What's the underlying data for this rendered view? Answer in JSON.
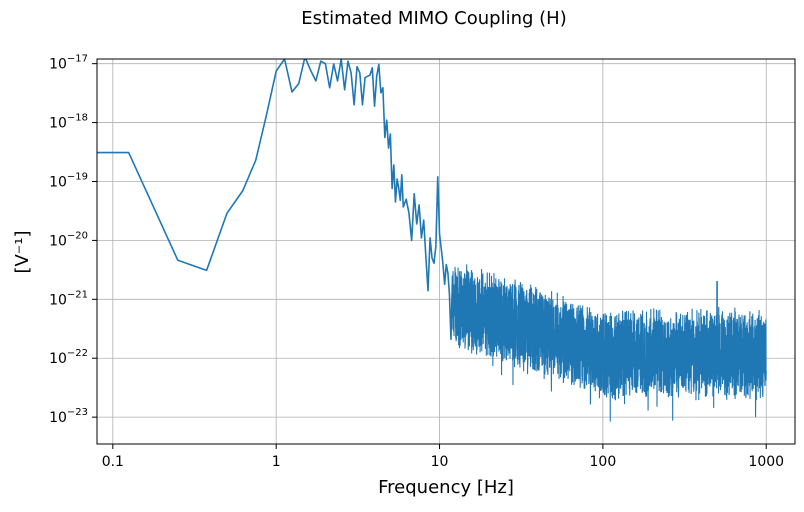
{
  "chart_data": {
    "type": "line",
    "title": "Estimated MIMO Coupling (H)",
    "xlabel": "Frequency [Hz]",
    "ylabel": "[V⁻¹]",
    "x_scale": "log",
    "y_scale": "log",
    "xlim": [
      0.08,
      1500
    ],
    "ylim": [
      3.5e-24,
      1.2e-17
    ],
    "grid": true,
    "line_color": "#1f77b4",
    "xticks": [
      {
        "value": 0.1,
        "label": "0.1"
      },
      {
        "value": 1,
        "label": "1"
      },
      {
        "value": 10,
        "label": "10"
      },
      {
        "value": 100,
        "label": "100"
      },
      {
        "value": 1000,
        "label": "1000"
      }
    ],
    "yticks": [
      {
        "value": 1e-23,
        "base": "10",
        "exp": "−23"
      },
      {
        "value": 1e-22,
        "base": "10",
        "exp": "−22"
      },
      {
        "value": 1e-21,
        "base": "10",
        "exp": "−21"
      },
      {
        "value": 1e-20,
        "base": "10",
        "exp": "−20"
      },
      {
        "value": 1e-19,
        "base": "10",
        "exp": "−19"
      },
      {
        "value": 1e-18,
        "base": "10",
        "exp": "−18"
      },
      {
        "value": 1e-17,
        "base": "10",
        "exp": "−17"
      }
    ],
    "series": [
      {
        "x": [
          0.08,
          0.125,
          0.25,
          0.375,
          0.5,
          0.625,
          0.75,
          0.875,
          1.0,
          1.125,
          1.25,
          1.375,
          1.5,
          1.625,
          1.75,
          1.875,
          2.0,
          2.125,
          2.25,
          2.375,
          2.5,
          2.625,
          2.75,
          2.875,
          3.0,
          3.125,
          3.25,
          3.375,
          3.5,
          3.625,
          3.75,
          3.875,
          4.0,
          4.125,
          4.25,
          4.375,
          4.5,
          4.625,
          4.75,
          4.875,
          5.0,
          5.125,
          5.25,
          5.375,
          5.5,
          5.625,
          5.75,
          5.875,
          6.0,
          6.25,
          6.5,
          6.75,
          7.0,
          7.25,
          7.5,
          7.75,
          8.0,
          8.25,
          8.5,
          8.75,
          9.0,
          9.25,
          9.5,
          9.75,
          10.0,
          10.25,
          10.5,
          10.75,
          11.0,
          11.25,
          11.5,
          11.75,
          12.0
        ],
        "y": [
          3.1e-19,
          3.1e-19,
          4.6e-21,
          3.1e-21,
          2.9e-20,
          7e-20,
          2.3e-19,
          1.4e-18,
          7.5e-18,
          1.2e-17,
          3.3e-18,
          4.6e-18,
          1.3e-17,
          7.7e-18,
          5.1e-18,
          1.1e-17,
          1e-17,
          3.9e-18,
          9.9e-18,
          5.1e-18,
          1.2e-17,
          3.6e-18,
          1.1e-17,
          7e-18,
          2e-18,
          8.9e-18,
          7e-18,
          2e-18,
          5.8e-18,
          6.1e-18,
          6.4e-18,
          8.5e-18,
          1.9e-18,
          6.1e-18,
          9.7e-18,
          3.2e-18,
          3.9e-18,
          5.6e-19,
          1.1e-18,
          3.7e-19,
          6.4e-19,
          7.6e-20,
          1.9e-19,
          4.5e-20,
          1.1e-19,
          7.8e-20,
          4.8e-20,
          1.3e-19,
          3.7e-20,
          5e-20,
          2.9e-20,
          1e-20,
          6.2e-20,
          1.9e-20,
          4e-20,
          1.1e-20,
          2.2e-20,
          5.2e-21,
          1.4e-21,
          1.1e-20,
          5e-21,
          4.1e-21,
          8.1e-21,
          1.2e-19,
          1.3e-20,
          7.1e-21,
          3.9e-21,
          1.8e-21,
          3.9e-21,
          2.8e-21,
          1.2e-21,
          2.1e-22,
          2.5e-21
        ]
      }
    ],
    "noise_floor": {
      "x_start": 12,
      "x_end": 1000,
      "median_start": 9e-22,
      "median_end": 1.2e-22,
      "peak_x": 500,
      "peak_y": 2e-21
    }
  }
}
